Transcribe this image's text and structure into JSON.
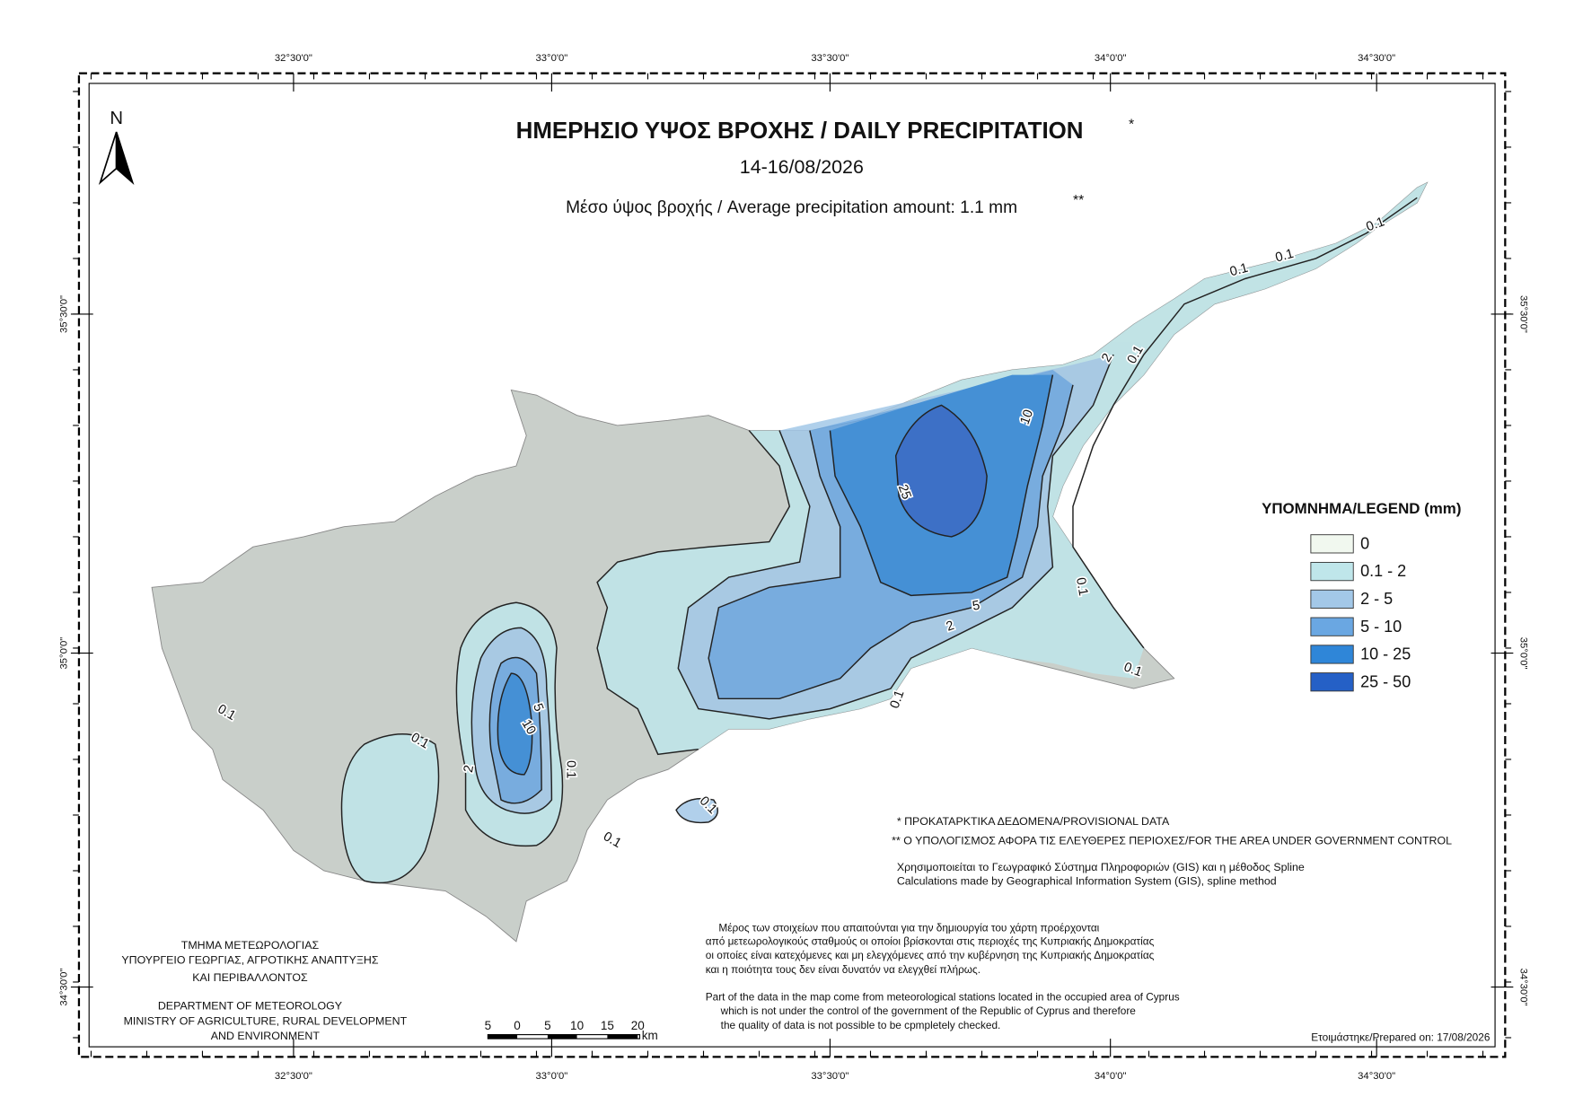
{
  "header": {
    "title": "ΗΜΕΡΗΣΙΟ ΥΨΟΣ ΒΡΟΧΗΣ / DAILY PRECIPITATION",
    "title_marker": "*",
    "date": "14-16/08/2026",
    "subtitle": "Μέσο ύψος βροχής / Average precipitation amount: 1.1 mm",
    "subtitle_marker": "**"
  },
  "north_arrow": "N",
  "coordinates": {
    "top": [
      "32°30'0\"",
      "33°0'0\"",
      "33°30'0\"",
      "34°0'0\"",
      "34°30'0\""
    ],
    "bottom": [
      "32°30'0\"",
      "33°0'0\"",
      "33°30'0\"",
      "34°0'0\"",
      "34°30'0\""
    ],
    "left": [
      "35°30'0\"",
      "35°0'0\"",
      "34°30'0\""
    ],
    "right": [
      "35°30'0\"",
      "35°0'0\"",
      "34°30'0\""
    ]
  },
  "legend": {
    "title": "ΥΠΟΜΝΗΜΑ/LEGEND (mm)",
    "items": [
      {
        "label": "0",
        "color": "#f1f8ef"
      },
      {
        "label": "0.1 - 2",
        "color": "#bfe6ea"
      },
      {
        "label": "2 - 5",
        "color": "#a3c8e8"
      },
      {
        "label": "5 - 10",
        "color": "#6aa7e2"
      },
      {
        "label": "10 - 25",
        "color": "#2f86d8"
      },
      {
        "label": "25 - 50",
        "color": "#2560c6"
      }
    ]
  },
  "contour_labels": [
    "0.1",
    "0.1",
    "0.1",
    "2",
    "5",
    "10",
    "0.1",
    "0.1",
    "0.1",
    "2",
    "5",
    "10",
    "25",
    "0.1",
    "0.1",
    "0.1",
    "0.1",
    "0.1",
    "0.1",
    "2"
  ],
  "notes": [
    "* ΠΡΟΚΑΤΑΡΚΤΙΚΑ ΔΕΔΟΜΕΝΑ/PROVISIONAL DATA",
    "** Ο ΥΠΟΛΟΓΙΣΜΟΣ ΑΦΟΡΑ ΤΙΣ ΕΛΕΥΘΕΡΕΣ ΠΕΡΙΟΧΕΣ/FOR THE AREA UNDER GOVERNMENT CONTROL",
    "Χρησιμοποιείται το Γεωγραφικό Σύστημα Πληροφοριών (GIS) και η μέθοδος Spline",
    "Calculations made by Geographical Information System (GIS), spline method"
  ],
  "credits": [
    "ΤΜΗΜΑ ΜΕΤΕΩΡΟΛΟΓΙΑΣ",
    "ΥΠΟΥΡΓΕΙΟ ΓΕΩΡΓΙΑΣ, ΑΓΡΟΤΙΚΗΣ ΑΝΑΠΤΥΞΗΣ",
    "ΚΑΙ ΠΕΡΙΒΑΛΛΟΝΤΟΣ",
    "DEPARTMENT OF METEOROLOGY",
    "MINISTRY OF AGRICULTURE, RURAL DEVELOPMENT",
    "AND ENVIRONMENT"
  ],
  "scale_bar": {
    "labels": [
      "5",
      "0",
      "5",
      "10",
      "15",
      "20"
    ],
    "unit": "km"
  },
  "disclaimer": [
    "Μέρος των στοιχείων που απαιτούνται για την δημιουργία του χάρτη προέρχονται",
    "από μετεωρολογικούς σταθμούς οι οποίοι βρίσκονται στις περιοχές της Κυπριακής Δημοκρατίας",
    "οι οποίες είναι κατεχόμενες και μη ελεγχόμενες από την κυβέρνηση της Κυπριακής Δημοκρατίας",
    "και η ποιότητα τους δεν είναι δυνατόν να ελεγχθεί πλήρως.",
    "Part of the data in the map come from meteorological stations located in the occupied area of Cyprus",
    "which is not under the control of the government of the Republic of Cyprus and therefore",
    "the quality of data is not possible to be cpmpletely checked."
  ],
  "prepared": "Ετοιμάστηκε/Prepared on: 17/08/2026"
}
